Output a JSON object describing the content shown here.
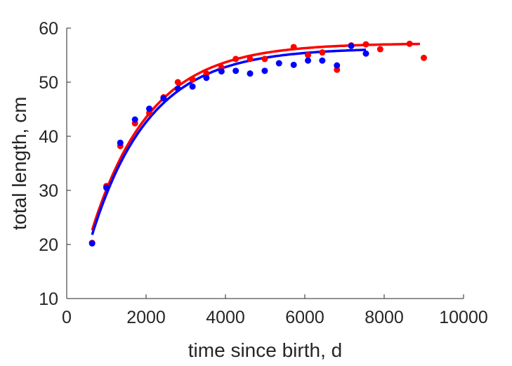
{
  "chart_data": {
    "type": "scatter",
    "xlabel": "time since birth, d",
    "ylabel": "total length, cm",
    "xlim": [
      0,
      10000
    ],
    "ylim": [
      10,
      60
    ],
    "xticks": [
      "0",
      "2000",
      "4000",
      "6000",
      "8000",
      "10000"
    ],
    "yticks": [
      "10",
      "20",
      "30",
      "40",
      "50",
      "60"
    ],
    "grid": false,
    "legend": "none",
    "series": [
      {
        "color": "#ff0000",
        "points": [
          [
            640,
            20.3
          ],
          [
            1000,
            30.8
          ],
          [
            1350,
            38.2
          ],
          [
            1720,
            42.4
          ],
          [
            2080,
            44.3
          ],
          [
            2440,
            47.2
          ],
          [
            2800,
            50.0
          ],
          [
            3170,
            50.5
          ],
          [
            3520,
            51.6
          ],
          [
            3900,
            52.7
          ],
          [
            4260,
            54.3
          ],
          [
            4620,
            54.3
          ],
          [
            4990,
            54.3
          ],
          [
            5720,
            56.5
          ],
          [
            6080,
            55.0
          ],
          [
            6440,
            55.5
          ],
          [
            6810,
            52.3
          ],
          [
            7170,
            56.8
          ],
          [
            7540,
            57.0
          ],
          [
            7900,
            56.1
          ],
          [
            8640,
            57.1
          ],
          [
            9000,
            54.5
          ]
        ],
        "fit": {
          "Linf": 57.2,
          "k": 0.00068,
          "t0": -100,
          "t_start": 640,
          "t_end": 8900
        }
      },
      {
        "color": "#0000ff",
        "points": [
          [
            640,
            20.2
          ],
          [
            1000,
            30.5
          ],
          [
            1350,
            38.8
          ],
          [
            1720,
            43.1
          ],
          [
            2080,
            45.1
          ],
          [
            2440,
            47.0
          ],
          [
            2800,
            48.8
          ],
          [
            3170,
            49.2
          ],
          [
            3520,
            50.8
          ],
          [
            3900,
            52.0
          ],
          [
            4260,
            52.1
          ],
          [
            4620,
            51.6
          ],
          [
            4990,
            52.1
          ],
          [
            5350,
            53.5
          ],
          [
            5720,
            53.2
          ],
          [
            6080,
            54.0
          ],
          [
            6440,
            54.0
          ],
          [
            6810,
            53.1
          ],
          [
            7170,
            56.7
          ],
          [
            7540,
            55.3
          ]
        ],
        "fit": {
          "Linf": 56.3,
          "k": 0.00068,
          "t0": -80,
          "t_start": 640,
          "t_end": 7540
        }
      }
    ]
  }
}
